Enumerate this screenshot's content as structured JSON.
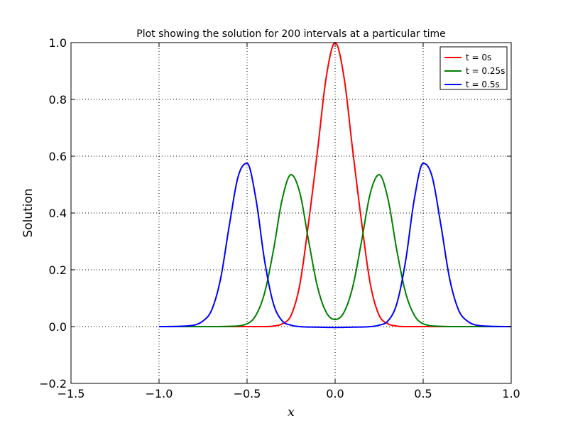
{
  "chart_data": {
    "type": "line",
    "title": "Plot showing the solution for 200 intervals at a particular time",
    "xlabel": "x",
    "ylabel": "Solution",
    "xlim": [
      -1.5,
      1.0
    ],
    "ylim": [
      -0.2,
      1.0
    ],
    "xticks": [
      -1.5,
      -1.0,
      -0.5,
      0.0,
      0.5,
      1.0
    ],
    "xtick_labels": [
      "−1.5",
      "−1.0",
      "−0.5",
      "0.0",
      "0.5",
      "1.0"
    ],
    "yticks": [
      -0.2,
      0.0,
      0.2,
      0.4,
      0.6,
      0.8,
      1.0
    ],
    "ytick_labels": [
      "−0.2",
      "0.0",
      "0.2",
      "0.4",
      "0.6",
      "0.8",
      "1.0"
    ],
    "grid": true,
    "legend_position": "top-right",
    "series": [
      {
        "name": "t = 0s",
        "color": "#ff0000",
        "x": [
          -1.0,
          -0.6,
          -0.4,
          -0.35,
          -0.3,
          -0.25,
          -0.2,
          -0.15,
          -0.1,
          -0.05,
          0.0,
          0.05,
          0.1,
          0.15,
          0.2,
          0.25,
          0.3,
          0.35,
          0.4,
          0.6,
          1.0
        ],
        "y": [
          0.0,
          0.0,
          0.0,
          0.002,
          0.01,
          0.04,
          0.15,
          0.37,
          0.62,
          0.88,
          1.0,
          0.88,
          0.62,
          0.37,
          0.15,
          0.04,
          0.01,
          0.002,
          0.0,
          0.0,
          0.0
        ]
      },
      {
        "name": "t = 0.25s",
        "color": "#008000",
        "x": [
          -1.0,
          -0.7,
          -0.6,
          -0.5,
          -0.45,
          -0.4,
          -0.35,
          -0.3,
          -0.25,
          -0.2,
          -0.15,
          -0.1,
          -0.05,
          0.0,
          0.05,
          0.1,
          0.15,
          0.2,
          0.25,
          0.3,
          0.35,
          0.4,
          0.45,
          0.5,
          0.6,
          0.7,
          1.0
        ],
        "y": [
          0.0,
          0.0,
          0.001,
          0.01,
          0.04,
          0.12,
          0.27,
          0.45,
          0.535,
          0.47,
          0.3,
          0.14,
          0.05,
          0.025,
          0.05,
          0.14,
          0.3,
          0.47,
          0.535,
          0.45,
          0.27,
          0.12,
          0.04,
          0.01,
          0.001,
          0.0,
          0.0
        ]
      },
      {
        "name": "t = 0.5s",
        "color": "#0000ff",
        "x": [
          -1.0,
          -0.85,
          -0.75,
          -0.7,
          -0.65,
          -0.6,
          -0.55,
          -0.5,
          -0.45,
          -0.4,
          -0.35,
          -0.3,
          -0.25,
          -0.2,
          -0.1,
          0.0,
          0.1,
          0.2,
          0.25,
          0.3,
          0.35,
          0.4,
          0.45,
          0.5,
          0.55,
          0.6,
          0.65,
          0.7,
          0.75,
          0.85,
          1.0
        ],
        "y": [
          0.0,
          0.002,
          0.02,
          0.06,
          0.17,
          0.36,
          0.53,
          0.575,
          0.45,
          0.23,
          0.08,
          0.02,
          0.005,
          0.0,
          -0.002,
          -0.003,
          -0.002,
          0.0,
          0.005,
          0.02,
          0.08,
          0.23,
          0.45,
          0.575,
          0.53,
          0.36,
          0.17,
          0.06,
          0.02,
          0.002,
          0.0
        ]
      }
    ]
  }
}
